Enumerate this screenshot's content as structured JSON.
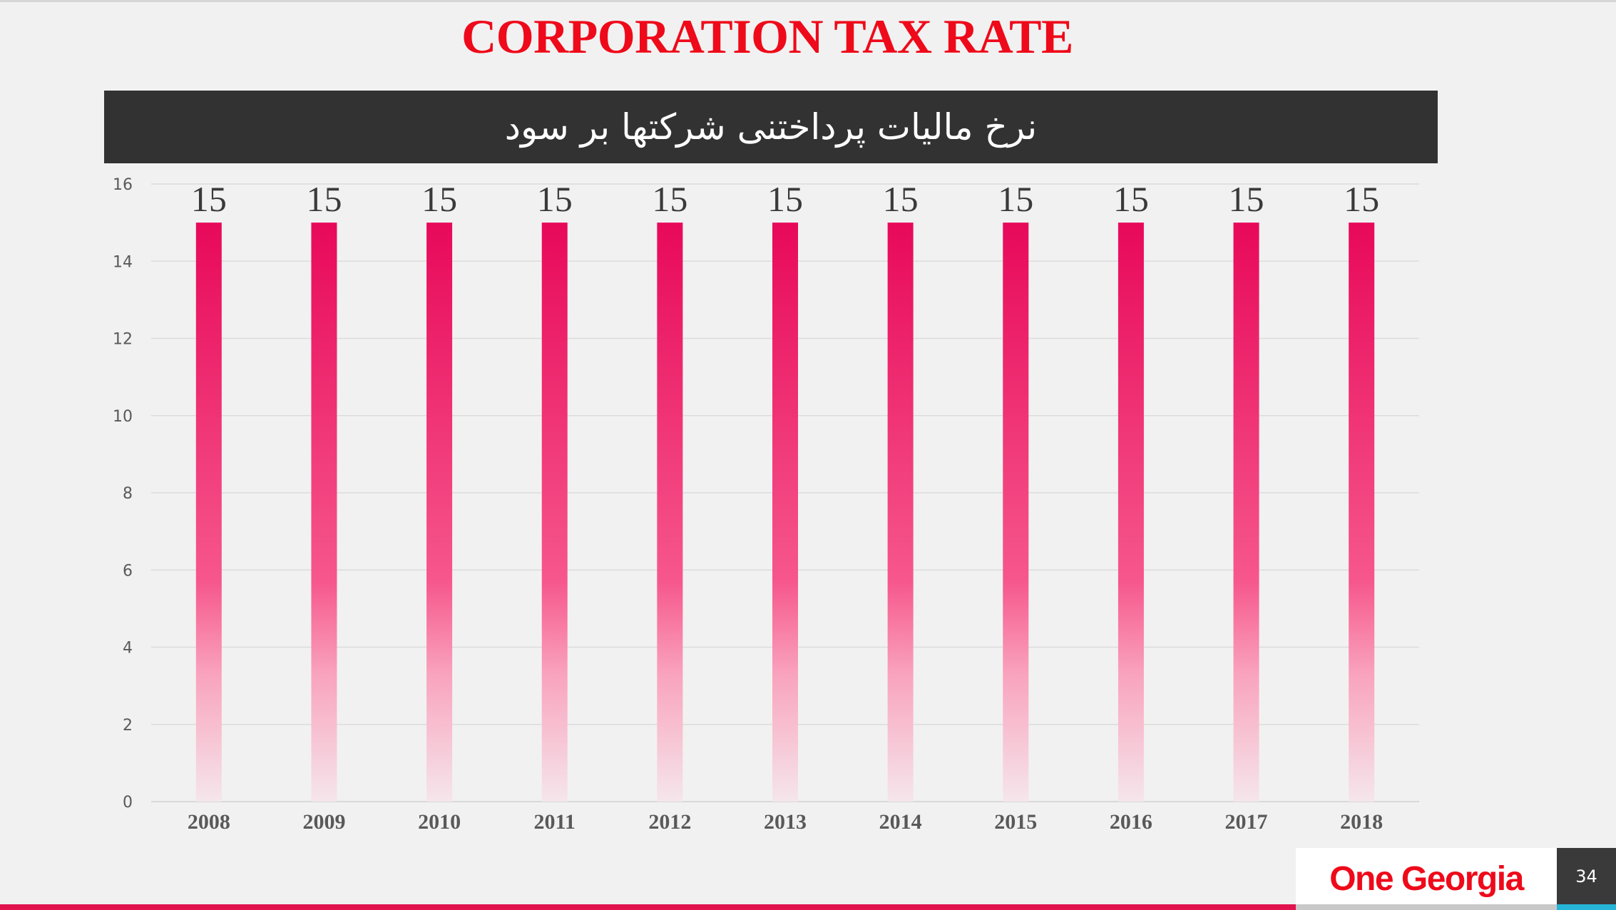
{
  "slide": {
    "title": "CORPORATION TAX RATE",
    "subtitle": "نرخ مالیات پرداختنی شرکتها بر سود",
    "brand": "One Georgia",
    "page_number": "34"
  },
  "colors": {
    "title": "#ee0a1a",
    "bar_top": "#e8095a",
    "bar_bottom": "#f5d6e0",
    "subtitle_bg": "#323232",
    "accent_red": "#e1144f",
    "accent_cyan": "#26b5d6"
  },
  "chart_data": {
    "type": "bar",
    "categories": [
      "2008",
      "2009",
      "2010",
      "2011",
      "2012",
      "2013",
      "2014",
      "2015",
      "2016",
      "2017",
      "2018"
    ],
    "values": [
      15,
      15,
      15,
      15,
      15,
      15,
      15,
      15,
      15,
      15,
      15
    ],
    "data_labels": [
      "15",
      "15",
      "15",
      "15",
      "15",
      "15",
      "15",
      "15",
      "15",
      "15",
      "15"
    ],
    "y_ticks": [
      "0",
      "2",
      "4",
      "6",
      "8",
      "10",
      "12",
      "14",
      "16"
    ],
    "ylim": [
      0,
      16
    ],
    "grid": true,
    "legend": "none"
  }
}
